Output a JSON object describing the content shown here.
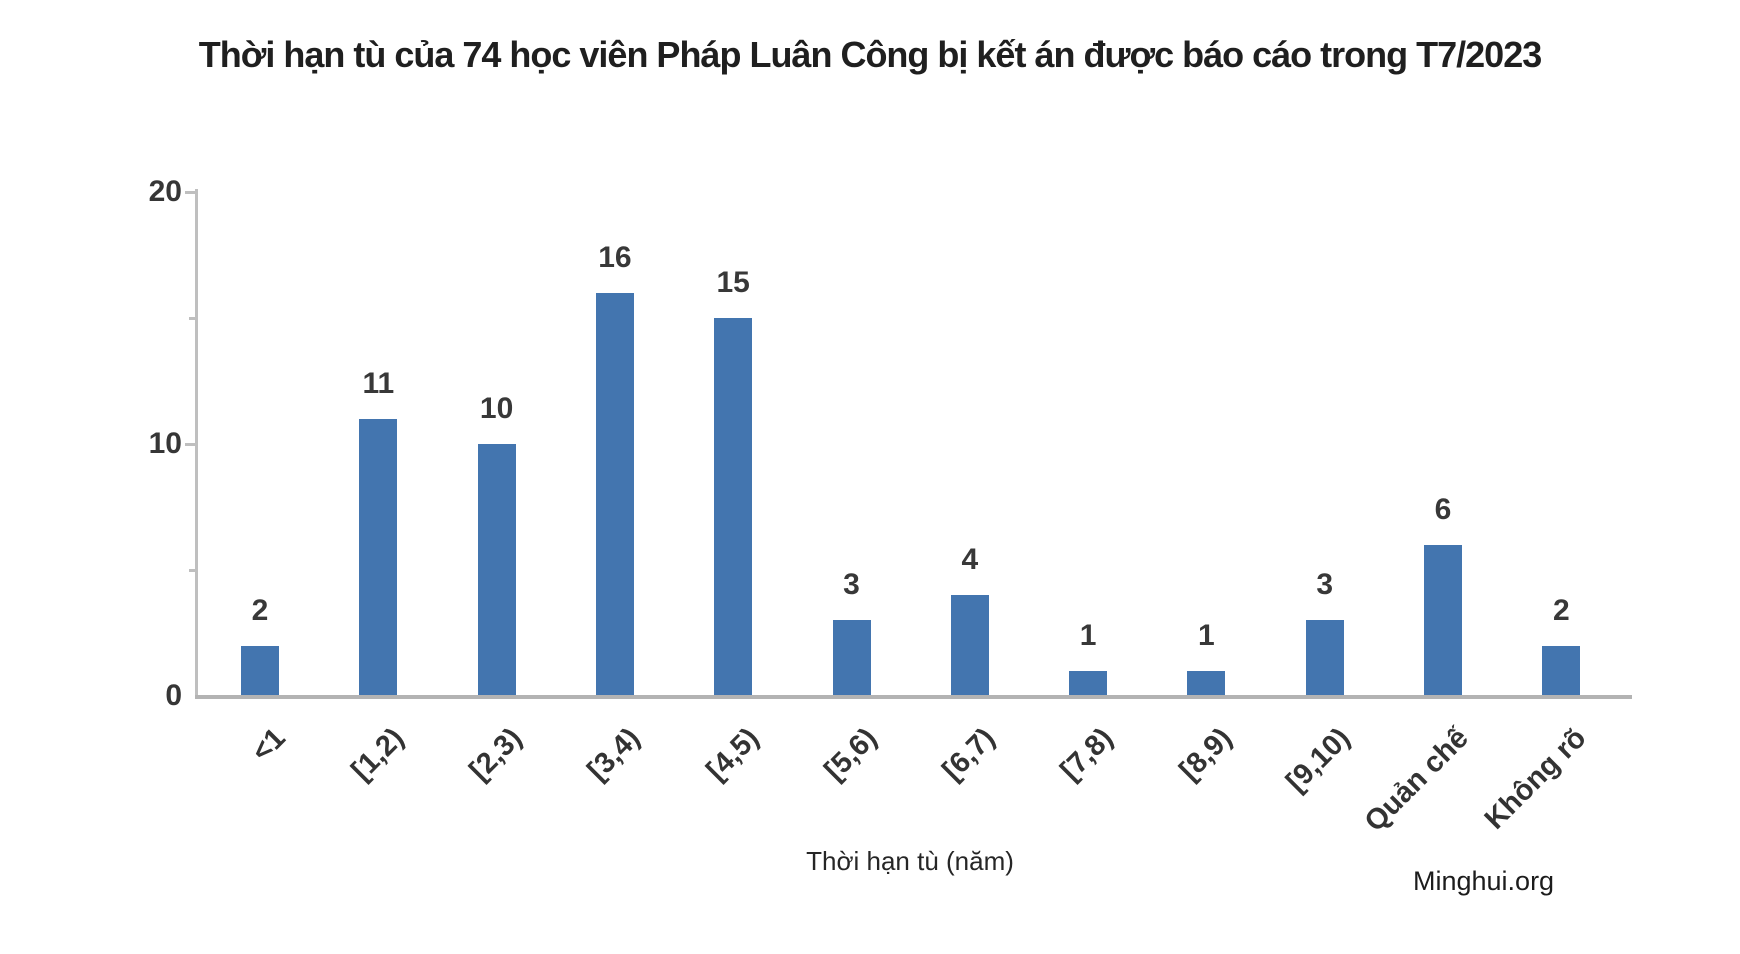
{
  "chart_data": {
    "type": "bar",
    "title": "Thời hạn tù của 74 học viên Pháp Luân Công bị kết án được báo cáo trong T7/2023",
    "categories": [
      "<1",
      "[1,2)",
      "[2,3)",
      "[3,4)",
      "[4,5)",
      "[5,6)",
      "[6,7)",
      "[7,8)",
      "[8,9)",
      "[9,10)",
      "Quản chế",
      "Không rõ"
    ],
    "values": [
      2,
      11,
      10,
      16,
      15,
      3,
      4,
      1,
      1,
      3,
      6,
      2
    ],
    "xlabel": "Thời hạn tù (năm)",
    "ylabel": "",
    "ylim": [
      0,
      20
    ],
    "yticks": [
      0,
      10,
      20
    ],
    "y_minor_ticks": [
      5,
      15
    ],
    "bar_color": "#4375AF",
    "axis_color": "#BFBFBF",
    "label_color": "#383838",
    "grid": false,
    "legend": "none",
    "data_labels": true
  },
  "footer": {
    "source": "Minghui.org"
  }
}
